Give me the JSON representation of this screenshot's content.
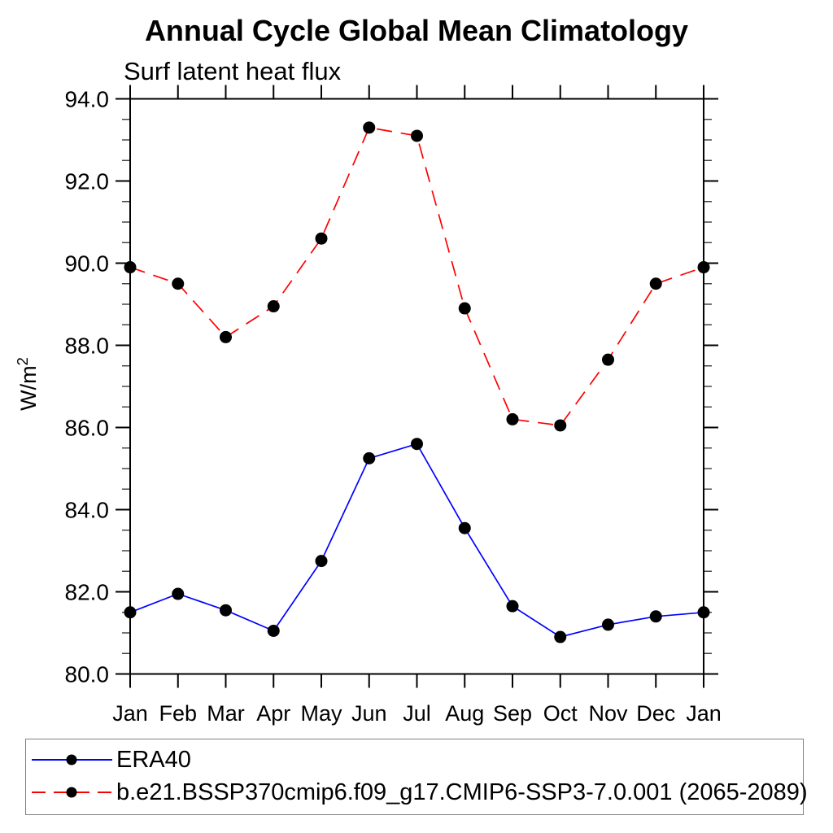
{
  "page": {
    "background": "#ffffff",
    "foreground": "#000000"
  },
  "chart_data": {
    "type": "line",
    "title": "Annual Cycle Global Mean Climatology",
    "subtitle": "Surf latent heat flux",
    "ylabel": "W/m²",
    "ylabel_base": "W/m",
    "ylabel_exponent": "2",
    "categories": [
      "Jan",
      "Feb",
      "Mar",
      "Apr",
      "May",
      "Jun",
      "Jul",
      "Aug",
      "Sep",
      "Oct",
      "Nov",
      "Dec",
      "Jan"
    ],
    "ylim": [
      80.0,
      94.0
    ],
    "y_major_step": 2.0,
    "y_minor_step": 0.5,
    "y_tick_decimals": 1,
    "y_tick_labels": [
      "80.0",
      "82.0",
      "84.0",
      "86.0",
      "88.0",
      "90.0",
      "92.0",
      "94.0"
    ],
    "grid": false,
    "legend_position": "bottom",
    "marker": {
      "shape": "circle",
      "color": "#000000"
    },
    "series": [
      {
        "name": "ERA40",
        "color": "#0000ff",
        "line_style": "solid",
        "values": [
          81.5,
          81.95,
          81.55,
          81.05,
          82.75,
          85.25,
          85.6,
          83.55,
          81.65,
          80.9,
          81.2,
          81.4,
          81.5
        ]
      },
      {
        "name": "b.e21.BSSP370cmip6.f09_g17.CMIP6-SSP3-7.0.001 (2065-2089)",
        "color": "#ff0000",
        "line_style": "dashed",
        "values": [
          89.9,
          89.5,
          88.2,
          88.95,
          90.6,
          93.3,
          93.1,
          88.9,
          86.2,
          86.05,
          87.65,
          89.5,
          89.9
        ]
      }
    ]
  }
}
